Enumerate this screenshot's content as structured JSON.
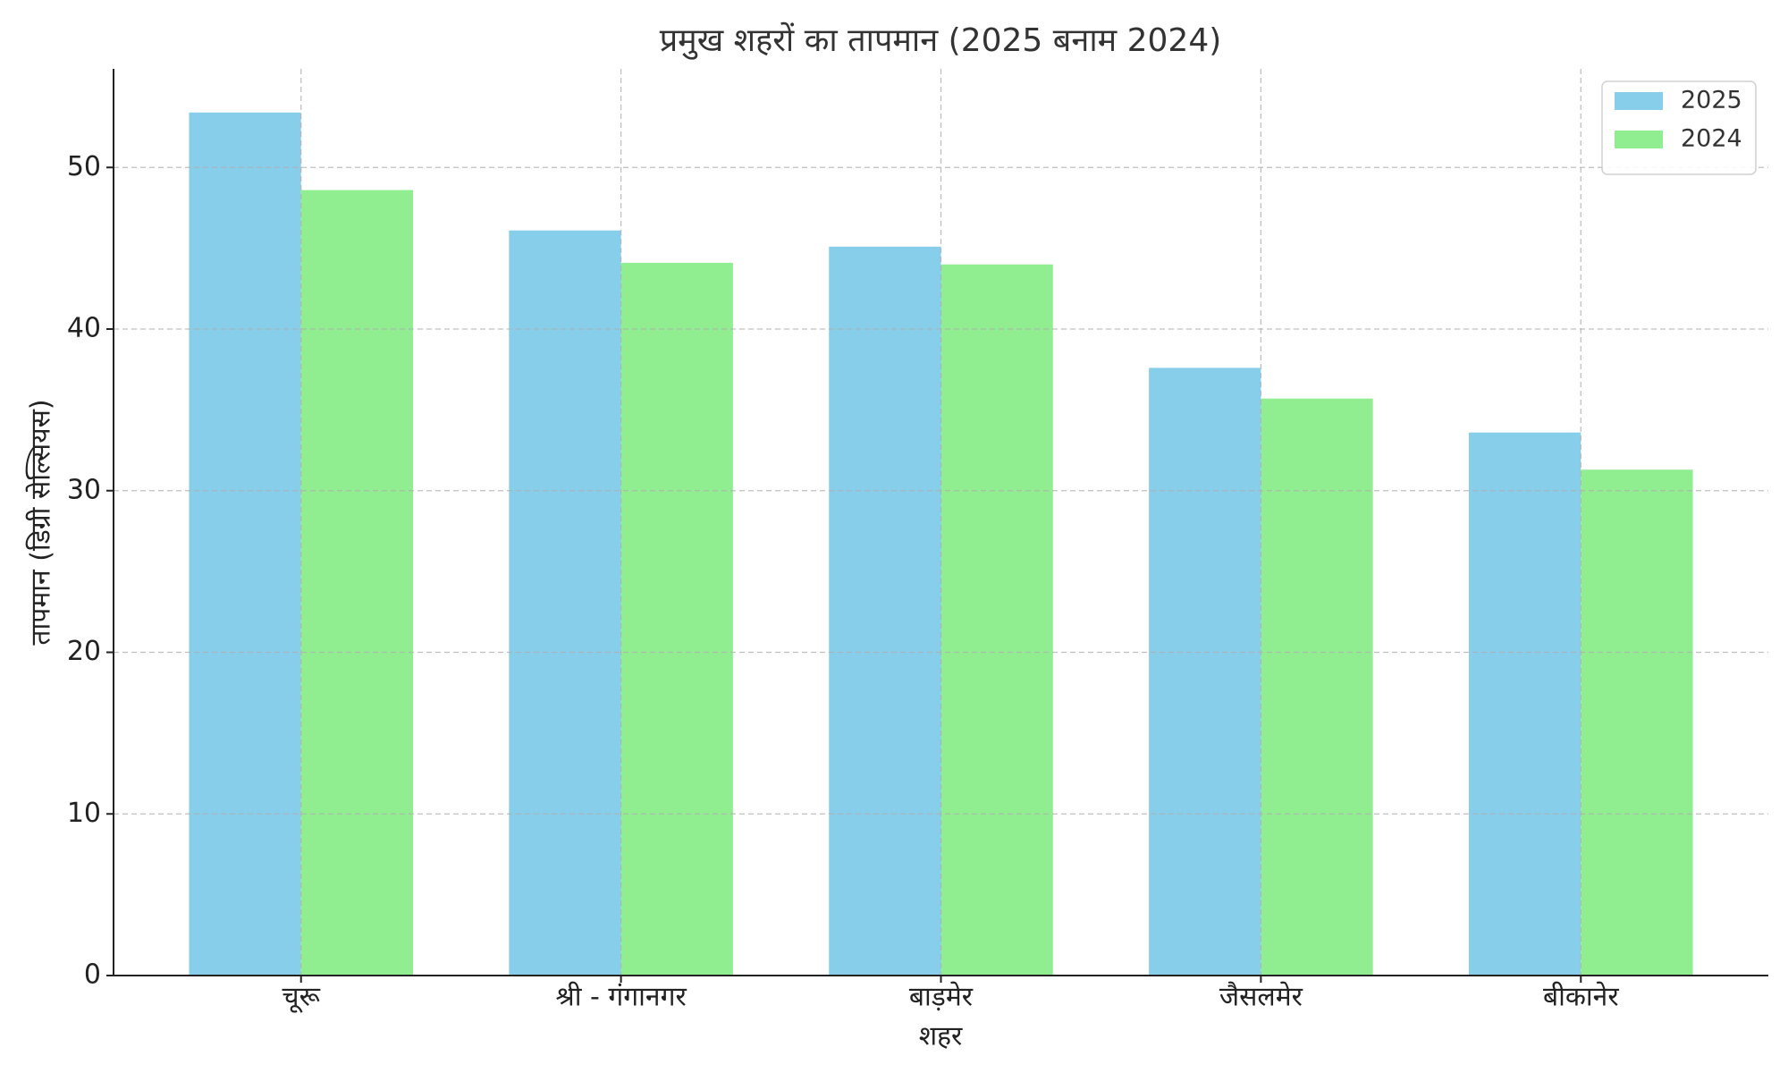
{
  "chart_data": {
    "type": "bar",
    "title": "प्रमुख शहरों का तापमान (2025 बनाम 2024)",
    "xlabel": "शहर",
    "ylabel": "तापमान (डिग्री सेल्सियस)",
    "categories": [
      "चूरू",
      "श्री - गंगानगर",
      "बाड़मेर",
      "जैसलमेर",
      "बीकानेर"
    ],
    "series": [
      {
        "name": "2025",
        "color": "#87ceeb",
        "values": [
          53.4,
          46.1,
          45.1,
          37.6,
          33.6
        ]
      },
      {
        "name": "2024",
        "color": "#90ee90",
        "values": [
          48.6,
          44.1,
          44.0,
          35.7,
          31.3
        ]
      }
    ],
    "ylim": [
      0,
      56.1
    ],
    "yticks": [
      0,
      10,
      20,
      30,
      40,
      50
    ],
    "grid": true,
    "legend": "upper right"
  }
}
